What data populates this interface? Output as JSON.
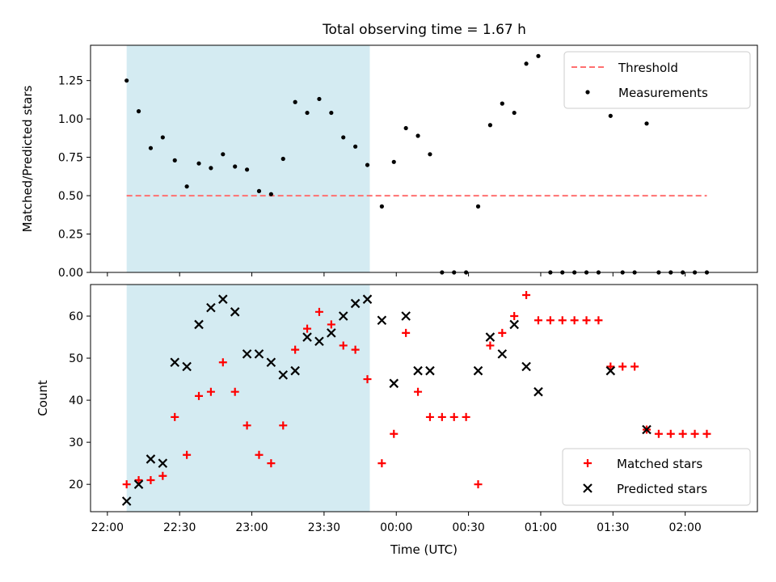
{
  "title": "Total observing time = 1.67 h",
  "colors": {
    "shade": "#add8e6",
    "threshold": "#ff7070",
    "measure": "#000000",
    "matched": "#ff0000",
    "predicted": "#000000"
  },
  "chart_data": [
    {
      "type": "scatter",
      "title": "Total observing time = 1.67 h",
      "xlabel": "",
      "ylabel": "Matched/Predicted stars",
      "xlim": [
        "21:53",
        "02:30"
      ],
      "ylim": [
        0,
        1.48
      ],
      "yticks": [
        "0.00",
        "0.25",
        "0.50",
        "0.75",
        "1.00",
        "1.25"
      ],
      "shaded_span": [
        "22:08",
        "23:49"
      ],
      "threshold": {
        "name": "Threshold",
        "y": 0.5,
        "x": [
          "22:08",
          "02:09"
        ]
      },
      "legend_position": "top-right",
      "series": [
        {
          "name": "Measurements",
          "x": [
            "22:08",
            "22:13",
            "22:18",
            "22:23",
            "22:28",
            "22:33",
            "22:38",
            "22:43",
            "22:48",
            "22:53",
            "22:58",
            "23:03",
            "23:08",
            "23:13",
            "23:18",
            "23:23",
            "23:28",
            "23:33",
            "23:38",
            "23:43",
            "23:48",
            "23:54",
            "23:59",
            "00:04",
            "00:09",
            "00:14",
            "00:19",
            "00:24",
            "00:29",
            "00:34",
            "00:39",
            "00:44",
            "00:49",
            "00:54",
            "00:59",
            "01:04",
            "01:09",
            "01:14",
            "01:19",
            "01:24",
            "01:29",
            "01:34",
            "01:39",
            "01:44",
            "01:49",
            "01:54",
            "01:59",
            "02:04",
            "02:09"
          ],
          "y": [
            1.25,
            1.05,
            0.81,
            0.88,
            0.73,
            0.56,
            0.71,
            0.68,
            0.77,
            0.69,
            0.67,
            0.53,
            0.51,
            0.74,
            1.11,
            1.04,
            1.13,
            1.04,
            0.88,
            0.82,
            0.7,
            0.43,
            0.72,
            0.94,
            0.89,
            0.77,
            0,
            0,
            0,
            0.43,
            0.96,
            1.1,
            1.04,
            1.36,
            1.41,
            0,
            0,
            0,
            0,
            0,
            1.02,
            0,
            0,
            0.97,
            0,
            0,
            0,
            0,
            0
          ]
        }
      ]
    },
    {
      "type": "scatter",
      "title": "",
      "xlabel": "Time (UTC)",
      "ylabel": "Count",
      "xlim": [
        "21:53",
        "02:30"
      ],
      "ylim": [
        13.5,
        67.5
      ],
      "yticks": [
        "20",
        "30",
        "40",
        "50",
        "60"
      ],
      "xticks": [
        "22:00",
        "22:30",
        "23:00",
        "23:30",
        "00:00",
        "00:30",
        "01:00",
        "01:30",
        "02:00"
      ],
      "shaded_span": [
        "22:08",
        "23:49"
      ],
      "legend_position": "bottom-right",
      "series": [
        {
          "name": "Matched stars",
          "marker": "plus",
          "x": [
            "22:08",
            "22:13",
            "22:18",
            "22:23",
            "22:28",
            "22:33",
            "22:38",
            "22:43",
            "22:48",
            "22:53",
            "22:58",
            "23:03",
            "23:08",
            "23:13",
            "23:18",
            "23:23",
            "23:28",
            "23:33",
            "23:38",
            "23:43",
            "23:48",
            "23:54",
            "23:59",
            "00:04",
            "00:09",
            "00:14",
            "00:19",
            "00:24",
            "00:29",
            "00:34",
            "00:39",
            "00:44",
            "00:49",
            "00:54",
            "00:59",
            "01:04",
            "01:09",
            "01:14",
            "01:19",
            "01:24",
            "01:29",
            "01:34",
            "01:39",
            "01:44",
            "01:49",
            "01:54",
            "01:59",
            "02:04",
            "02:09"
          ],
          "y": [
            20,
            21,
            21,
            22,
            36,
            27,
            41,
            42,
            49,
            42,
            34,
            27,
            25,
            34,
            52,
            57,
            61,
            58,
            53,
            52,
            45,
            25,
            32,
            56,
            42,
            36,
            36,
            36,
            36,
            20,
            53,
            56,
            60,
            65,
            59,
            59,
            59,
            59,
            59,
            59,
            48,
            48,
            48,
            33,
            32,
            32,
            32,
            32,
            32
          ]
        },
        {
          "name": "Predicted stars",
          "marker": "x",
          "x": [
            "22:08",
            "22:13",
            "22:18",
            "22:23",
            "22:28",
            "22:33",
            "22:38",
            "22:43",
            "22:48",
            "22:53",
            "22:58",
            "23:03",
            "23:08",
            "23:13",
            "23:18",
            "23:23",
            "23:28",
            "23:33",
            "23:38",
            "23:43",
            "23:48",
            "23:54",
            "23:59",
            "00:04",
            "00:09",
            "00:14",
            "00:34",
            "00:39",
            "00:44",
            "00:49",
            "00:54",
            "00:59",
            "01:29",
            "01:44"
          ],
          "y": [
            16,
            20,
            26,
            25,
            49,
            48,
            58,
            62,
            64,
            61,
            51,
            51,
            49,
            46,
            47,
            55,
            54,
            56,
            60,
            63,
            64,
            59,
            44,
            60,
            47,
            47,
            47,
            55,
            51,
            58,
            48,
            42,
            47,
            33
          ]
        }
      ]
    }
  ]
}
